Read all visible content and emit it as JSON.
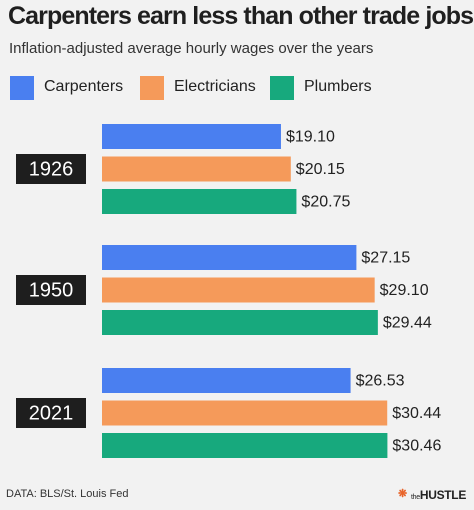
{
  "chart_data": {
    "type": "bar",
    "orientation": "horizontal",
    "title": "Carpenters earn less than other trade jobs",
    "subtitle": "Inflation-adjusted average hourly wages over the years",
    "categories": [
      "1926",
      "1950",
      "2021"
    ],
    "series": [
      {
        "name": "Carpenters",
        "color": "#4a7ff0",
        "values": [
          19.1,
          27.15,
          26.53
        ],
        "labels": [
          "$19.10",
          "$27.15",
          "$26.53"
        ]
      },
      {
        "name": "Electricians",
        "color": "#f59a5a",
        "values": [
          20.15,
          29.1,
          30.44
        ],
        "labels": [
          "$20.15",
          "$29.10",
          "$30.44"
        ]
      },
      {
        "name": "Plumbers",
        "color": "#17a97d",
        "values": [
          20.75,
          29.44,
          30.46
        ],
        "labels": [
          "$20.75",
          "$29.44",
          "$30.46"
        ]
      }
    ],
    "xlim": [
      0,
      31
    ],
    "legend_position": "top-left",
    "grid": false
  },
  "source": "DATA: BLS/St. Louis Fed",
  "logo": {
    "prefix": "the",
    "name": "HUSTLE"
  }
}
